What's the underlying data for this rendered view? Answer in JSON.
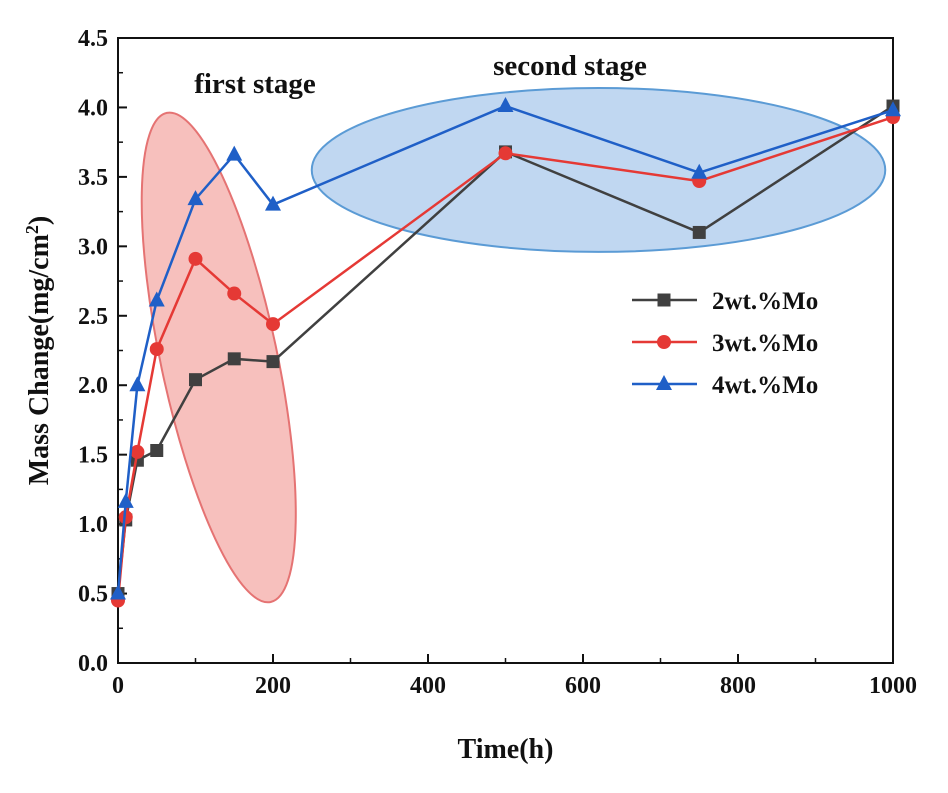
{
  "chart_data": {
    "type": "line",
    "title": "",
    "xlabel": "Time(h)",
    "ylabel_main": "Mass Change(mg/cm",
    "ylabel_sup": "2",
    "ylabel_tail": ")",
    "xlim": [
      0,
      1000
    ],
    "ylim": [
      0,
      4.5
    ],
    "xticks": [
      0,
      200,
      400,
      600,
      800,
      1000
    ],
    "xtick_labels": [
      "0",
      "200",
      "400",
      "600",
      "800",
      "1000"
    ],
    "yticks": [
      0.0,
      0.5,
      1.0,
      1.5,
      2.0,
      2.5,
      3.0,
      3.5,
      4.0,
      4.5
    ],
    "ytick_labels": [
      "0.0",
      "0.5",
      "1.0",
      "1.5",
      "2.0",
      "2.5",
      "3.0",
      "3.5",
      "4.0",
      "4.5"
    ],
    "grid": false,
    "legend_position": "right-middle",
    "series": [
      {
        "name": "2wt.%Mo",
        "color": "#404040",
        "marker": "square",
        "x": [
          0,
          10,
          25,
          50,
          100,
          150,
          200,
          500,
          750,
          1000
        ],
        "y": [
          0.5,
          1.03,
          1.46,
          1.53,
          2.04,
          2.19,
          2.17,
          3.68,
          3.1,
          4.01
        ]
      },
      {
        "name": "3wt.%Mo",
        "color": "#e53935",
        "marker": "circle",
        "x": [
          0,
          10,
          25,
          50,
          100,
          150,
          200,
          500,
          750,
          1000
        ],
        "y": [
          0.45,
          1.05,
          1.52,
          2.26,
          2.91,
          2.66,
          2.44,
          3.67,
          3.47,
          3.93
        ]
      },
      {
        "name": "4wt.%Mo",
        "color": "#1f5fc7",
        "marker": "triangle",
        "x": [
          0,
          10,
          25,
          50,
          100,
          150,
          200,
          500,
          750,
          1000
        ],
        "y": [
          0.5,
          1.16,
          2.0,
          2.61,
          3.34,
          3.66,
          3.3,
          4.01,
          3.53,
          3.98
        ]
      }
    ],
    "annotations": [
      {
        "text": "first stage",
        "shape": "ellipse",
        "fill": "#f4a7a3",
        "stroke": "#e57373",
        "cx": 130,
        "cy": 2.2,
        "rx_data": 75,
        "ry_data": 1.8,
        "rotation_deg": -12
      },
      {
        "text": "second stage",
        "shape": "ellipse",
        "fill": "#a8c8ec",
        "stroke": "#5b9bd5",
        "cx": 620,
        "cy": 3.55,
        "rx_data": 370,
        "ry_data": 0.59,
        "rotation_deg": 0
      }
    ]
  }
}
